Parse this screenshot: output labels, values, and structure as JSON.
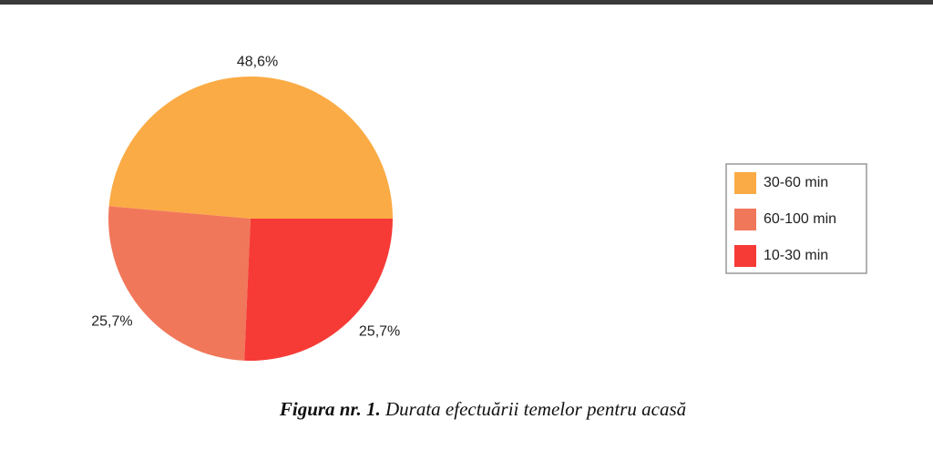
{
  "chart_data": {
    "type": "pie",
    "categories": [
      "30-60 min",
      "60-100 min",
      "10-30 min"
    ],
    "values": [
      48.6,
      25.7,
      25.7
    ],
    "value_labels": [
      "48,6%",
      "25,7%",
      "25,7%"
    ],
    "colors": [
      "#fbab45",
      "#f1775a",
      "#f63b37"
    ],
    "legend": "right",
    "caption": {
      "label": "Figura nr. 1.",
      "text": "Durata efectuării temelor pentru acasă"
    }
  }
}
